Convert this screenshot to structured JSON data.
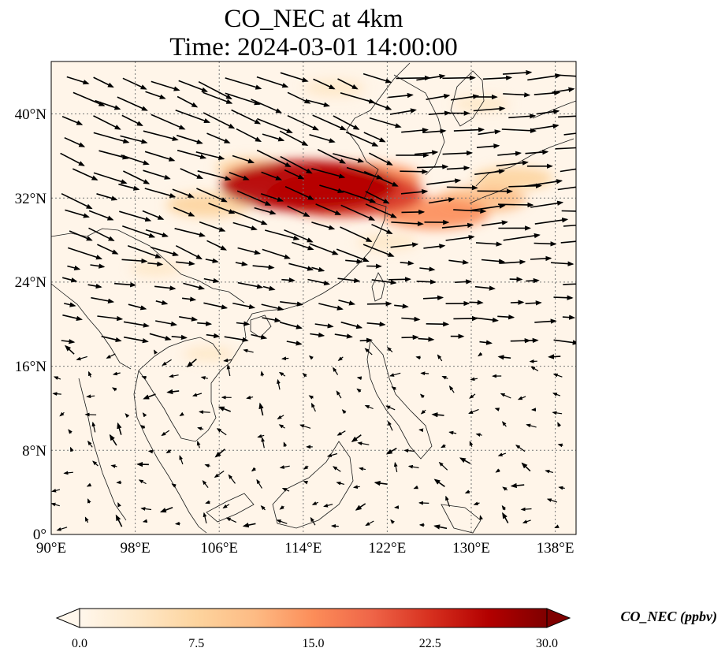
{
  "title": {
    "line1": "CO_NEC at 4km",
    "line2": "Time: 2024-03-01 14:00:00"
  },
  "colorbar": {
    "label": "CO_NEC (ppbv)",
    "ticks": [
      "0.0",
      "7.5",
      "15.0",
      "22.5",
      "30.0"
    ],
    "range": [
      0,
      30
    ],
    "extend": "both",
    "colormap": "OrRd",
    "colors": [
      "#fff7ec",
      "#fee8c8",
      "#fdd49e",
      "#fdbb84",
      "#fc8d59",
      "#ef6548",
      "#d7301f",
      "#b30000",
      "#7f0000"
    ]
  },
  "chart_data": {
    "type": "heatmap",
    "variable": "CO_NEC",
    "units": "ppbv",
    "xlim": [
      90,
      140
    ],
    "ylim": [
      0,
      44.5
    ],
    "x_ticks": [
      "90°E",
      "98°E",
      "106°E",
      "114°E",
      "122°E",
      "130°E",
      "138°E"
    ],
    "y_ticks": [
      "0°",
      "8°N",
      "16°N",
      "24°N",
      "32°N",
      "40°N"
    ],
    "x_tick_values": [
      90,
      98,
      106,
      114,
      122,
      130,
      138
    ],
    "y_tick_values": [
      0,
      8,
      16,
      24,
      32,
      40
    ],
    "grid": true,
    "concentration_blobs": [
      {
        "lon": 114.5,
        "lat": 32.8,
        "value": 28
      },
      {
        "lon": 118.0,
        "lat": 32.0,
        "value": 24
      },
      {
        "lon": 112.0,
        "lat": 33.5,
        "value": 16
      },
      {
        "lon": 120.0,
        "lat": 33.5,
        "value": 14
      },
      {
        "lon": 126.5,
        "lat": 30.2,
        "value": 14
      },
      {
        "lon": 131.0,
        "lat": 31.5,
        "value": 10
      },
      {
        "lon": 134.0,
        "lat": 33.5,
        "value": 8
      },
      {
        "lon": 105.0,
        "lat": 31.0,
        "value": 9
      },
      {
        "lon": 109.0,
        "lat": 34.5,
        "value": 6
      },
      {
        "lon": 122.0,
        "lat": 27.5,
        "value": 4
      },
      {
        "lon": 117.0,
        "lat": 42.0,
        "value": 4
      },
      {
        "lon": 131.0,
        "lat": 40.5,
        "value": 3
      },
      {
        "lon": 100.0,
        "lat": 25.0,
        "value": 2
      },
      {
        "lon": 105.0,
        "lat": 17.0,
        "value": 2
      }
    ],
    "wind_vectors": "quiver field: strong eastward / south-eastward flow north of 24°N, weak variable flow over the South China Sea"
  }
}
